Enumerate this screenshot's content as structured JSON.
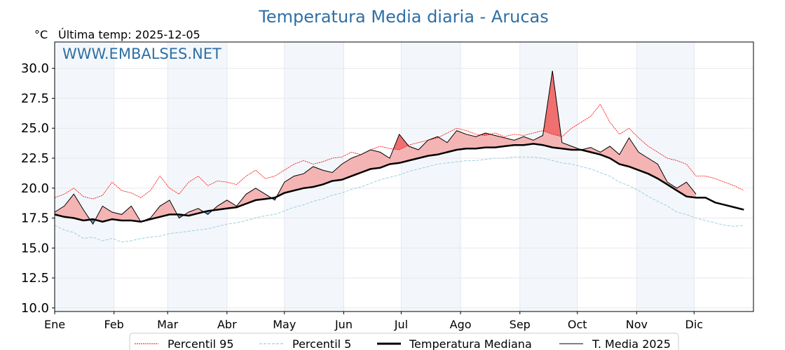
{
  "chart_data": {
    "type": "line",
    "title": "Temperatura Media diaria - Arucas",
    "ylabel": "°C",
    "subtitle": "Última temp: 2025-12-05",
    "watermark": "WWW.EMBALSES.NET",
    "ylim": [
      9.7,
      32.2
    ],
    "xlim_days": [
      0,
      365
    ],
    "yticks": [
      "10.0",
      "12.5",
      "15.0",
      "17.5",
      "20.0",
      "22.5",
      "25.0",
      "27.5",
      "30.0"
    ],
    "ytick_values": [
      10,
      12.5,
      15,
      17.5,
      20,
      22.5,
      25,
      27.5,
      30
    ],
    "months": [
      "Ene",
      "Feb",
      "Mar",
      "Abr",
      "May",
      "Jun",
      "Jul",
      "Ago",
      "Sep",
      "Oct",
      "Nov",
      "Dic"
    ],
    "month_start_days": [
      0,
      31,
      59,
      90,
      120,
      151,
      181,
      212,
      243,
      273,
      304,
      334
    ],
    "x_step_days": 5,
    "legend": [
      "Percentil 95",
      "Percentil 5",
      "Temperatura Mediana",
      "T. Media 2025"
    ],
    "colors": {
      "p95": "#ff0000",
      "p5": "#9fcfe0",
      "median": "#000000",
      "t2025": "#000000",
      "above": "#f4b4b4",
      "above_p95": "#f07070",
      "below": "#6f93b8",
      "title": "#2f6fa5",
      "band": "#f3f7fb"
    },
    "series": [
      {
        "name": "Temperatura Mediana",
        "values": [
          17.8,
          17.6,
          17.5,
          17.3,
          17.4,
          17.2,
          17.4,
          17.3,
          17.3,
          17.2,
          17.4,
          17.6,
          17.8,
          17.8,
          17.7,
          17.9,
          18.1,
          18.2,
          18.3,
          18.4,
          18.7,
          19.0,
          19.1,
          19.2,
          19.6,
          19.8,
          20.0,
          20.1,
          20.3,
          20.6,
          20.7,
          21.0,
          21.3,
          21.6,
          21.7,
          22.0,
          22.1,
          22.3,
          22.5,
          22.7,
          22.8,
          23.0,
          23.2,
          23.3,
          23.3,
          23.4,
          23.4,
          23.5,
          23.6,
          23.6,
          23.7,
          23.6,
          23.4,
          23.3,
          23.2,
          23.2,
          23.0,
          22.8,
          22.5,
          22.0,
          21.8,
          21.5,
          21.2,
          20.8,
          20.3,
          19.8,
          19.3,
          19.2,
          19.2,
          18.8,
          18.6,
          18.4,
          18.2
        ]
      },
      {
        "name": "Percentil 95",
        "values": [
          19.2,
          19.5,
          20.0,
          19.3,
          19.1,
          19.4,
          20.5,
          19.8,
          19.6,
          19.2,
          19.8,
          21.0,
          20.0,
          19.5,
          20.5,
          21.0,
          20.2,
          20.6,
          20.5,
          20.3,
          21.0,
          21.5,
          20.8,
          21.0,
          21.5,
          22.0,
          22.3,
          22.0,
          22.2,
          22.5,
          22.6,
          23.0,
          22.8,
          23.2,
          23.5,
          23.3,
          23.2,
          23.6,
          23.8,
          24.0,
          24.2,
          24.6,
          25.0,
          24.8,
          24.5,
          24.4,
          24.6,
          24.3,
          24.5,
          24.4,
          24.6,
          24.8,
          24.5,
          24.3,
          25.0,
          25.5,
          26.0,
          27.0,
          25.5,
          24.5,
          25.0,
          24.2,
          23.5,
          23.0,
          22.5,
          22.3,
          22.0,
          21.0,
          21.0,
          20.8,
          20.5,
          20.2,
          19.8
        ]
      },
      {
        "name": "Percentil 5",
        "values": [
          16.9,
          16.5,
          16.3,
          15.8,
          15.9,
          15.6,
          15.8,
          15.5,
          15.6,
          15.8,
          15.9,
          16.0,
          16.2,
          16.3,
          16.4,
          16.5,
          16.6,
          16.8,
          17.0,
          17.1,
          17.3,
          17.5,
          17.7,
          17.8,
          18.1,
          18.4,
          18.6,
          18.9,
          19.1,
          19.4,
          19.6,
          19.9,
          20.1,
          20.4,
          20.7,
          20.9,
          21.1,
          21.4,
          21.6,
          21.8,
          22.0,
          22.1,
          22.2,
          22.3,
          22.3,
          22.4,
          22.5,
          22.5,
          22.6,
          22.6,
          22.6,
          22.5,
          22.3,
          22.1,
          22.0,
          21.8,
          21.6,
          21.3,
          21.0,
          20.5,
          20.2,
          19.8,
          19.3,
          18.9,
          18.5,
          18.0,
          17.8,
          17.5,
          17.3,
          17.1,
          16.9,
          16.8,
          16.9
        ]
      },
      {
        "name": "T. Media 2025",
        "values": [
          18.0,
          18.5,
          19.5,
          18.2,
          17.0,
          18.5,
          18.0,
          17.8,
          18.5,
          17.2,
          17.5,
          18.5,
          19.0,
          17.5,
          18.0,
          18.3,
          17.8,
          18.5,
          19.0,
          18.5,
          19.5,
          20.0,
          19.5,
          19.0,
          20.5,
          21.0,
          21.2,
          21.8,
          21.5,
          21.3,
          22.0,
          22.5,
          22.8,
          23.2,
          23.0,
          22.5,
          24.5,
          23.5,
          23.2,
          24.0,
          24.3,
          23.8,
          24.8,
          24.5,
          24.3,
          24.6,
          24.4,
          24.2,
          24.0,
          24.3,
          24.0,
          24.4,
          29.8,
          23.8,
          23.5,
          23.2,
          23.4,
          23.0,
          23.5,
          22.8,
          24.2,
          23.0,
          22.5,
          22.0,
          20.5,
          20.0,
          20.5,
          19.5
        ]
      }
    ]
  }
}
